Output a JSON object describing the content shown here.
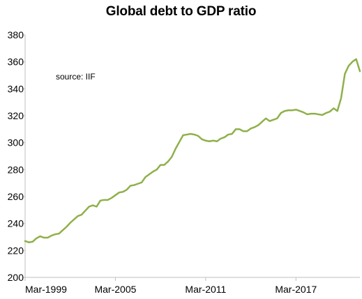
{
  "chart_data": {
    "type": "line",
    "title": "Global debt to GDP ratio",
    "annotation": "source:  IIF",
    "xlabel": "",
    "ylabel": "",
    "ylim": [
      200,
      380
    ],
    "yticks": [
      200,
      220,
      240,
      260,
      280,
      300,
      320,
      340,
      360,
      380
    ],
    "xtick_labels": [
      "Mar-1999",
      "Mar-2005",
      "Mar-2011",
      "Mar-2017"
    ],
    "x_unit": "quarter",
    "grid": false,
    "line_color": "#8fb04a",
    "series": [
      {
        "values": [
          227,
          226,
          226.5,
          229,
          230.5,
          229.5,
          229.5,
          231,
          232,
          232.5,
          235,
          237.5,
          240.5,
          243,
          245.5,
          246.5,
          249.5,
          252.5,
          253.5,
          252.5,
          257,
          257.5,
          257.5,
          259,
          261,
          263,
          263.5,
          265,
          268,
          268.5,
          269.5,
          270.5,
          274.5,
          276.5,
          278.5,
          280,
          283.5,
          283.5,
          286,
          289.5,
          295.5,
          300.5,
          305.5,
          306,
          306.5,
          306,
          305,
          302.5,
          301.5,
          301,
          301.5,
          301,
          303,
          304,
          306,
          306.5,
          310,
          310,
          308.5,
          308.5,
          310.5,
          311.5,
          313,
          315.5,
          318,
          316,
          317,
          318,
          322,
          323.5,
          324,
          324,
          324.5,
          323.5,
          322.5,
          321,
          321.5,
          321.5,
          321,
          320.5,
          322,
          323,
          325.5,
          323.5,
          333,
          351,
          357,
          360,
          362,
          353
        ]
      }
    ]
  }
}
